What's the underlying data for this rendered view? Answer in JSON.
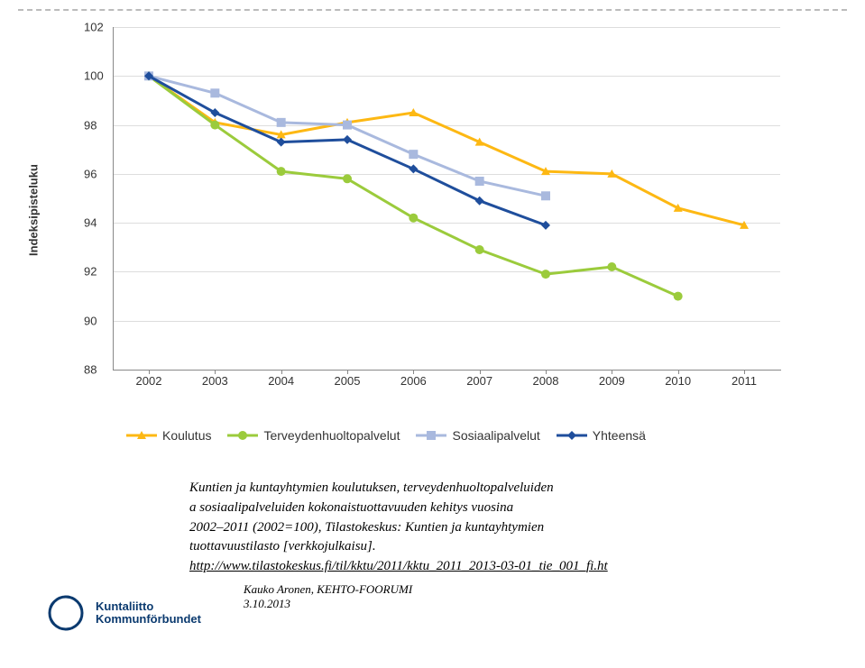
{
  "chart": {
    "type": "line",
    "ylabel": "Indeksipisteluku",
    "ylim": [
      88,
      102
    ],
    "ytick_step": 2,
    "yticks": [
      88,
      90,
      92,
      94,
      96,
      98,
      100,
      102
    ],
    "xcategories": [
      "2002",
      "2003",
      "2004",
      "2005",
      "2006",
      "2007",
      "2008",
      "2009",
      "2010",
      "2011"
    ],
    "grid_color": "#dddddd",
    "axis_color": "#888888",
    "background_color": "#ffffff",
    "line_width": 3,
    "marker_size": 10,
    "label_fontsize": 13,
    "series": [
      {
        "name": "Koulutus",
        "color": "#fdb813",
        "marker": "triangle",
        "values": [
          100,
          98.1,
          97.6,
          98.1,
          98.5,
          97.3,
          96.1,
          96.0,
          94.6,
          93.9
        ]
      },
      {
        "name": "Terveydenhuoltopalvelut",
        "color": "#9bcb3c",
        "marker": "circle",
        "values": [
          100,
          98.0,
          96.1,
          95.8,
          94.2,
          92.9,
          91.9,
          92.2,
          91.0,
          null
        ]
      },
      {
        "name": "Sosiaalipalvelut",
        "color": "#a9b9de",
        "marker": "square",
        "values": [
          100,
          99.3,
          98.1,
          98.0,
          96.8,
          95.7,
          95.1,
          null,
          null,
          null
        ]
      },
      {
        "name": "Yhteensä",
        "color": "#1f4e9c",
        "marker": "diamond",
        "values": [
          100,
          98.5,
          97.3,
          97.4,
          96.2,
          94.9,
          93.9,
          null,
          null,
          null
        ]
      }
    ]
  },
  "legend": [
    {
      "label": "Koulutus",
      "color": "#fdb813",
      "marker": "triangle"
    },
    {
      "label": "Terveydenhuoltopalvelut",
      "color": "#9bcb3c",
      "marker": "circle"
    },
    {
      "label": "Sosiaalipalvelut",
      "color": "#a9b9de",
      "marker": "square"
    },
    {
      "label": "Yhteensä",
      "color": "#1f4e9c",
      "marker": "diamond"
    }
  ],
  "caption": {
    "line1": "Kuntien ja kuntayhtymien koulutuksen, terveydenhuoltopalveluiden",
    "line2": "a sosiaalipalveluiden kokonaistuottavuuden kehitys vuosina",
    "line3": "2002–2011 (2002=100), Tilastokeskus: Kuntien ja kuntayhtymien",
    "line4": "tuottavuustilasto [verkkojulkaisu].",
    "link": "http://www.tilastokeskus.fi/til/kktu/2011/kktu_2011_2013-03-01_tie_001_fi.ht"
  },
  "footer": {
    "author": "Kauko Aronen,  KEHTO-FOORUMI",
    "date": "3.10.2013"
  },
  "logo": {
    "line1": "Kuntaliitto",
    "line2": "Kommunförbundet",
    "color": "#0b3a6f"
  }
}
